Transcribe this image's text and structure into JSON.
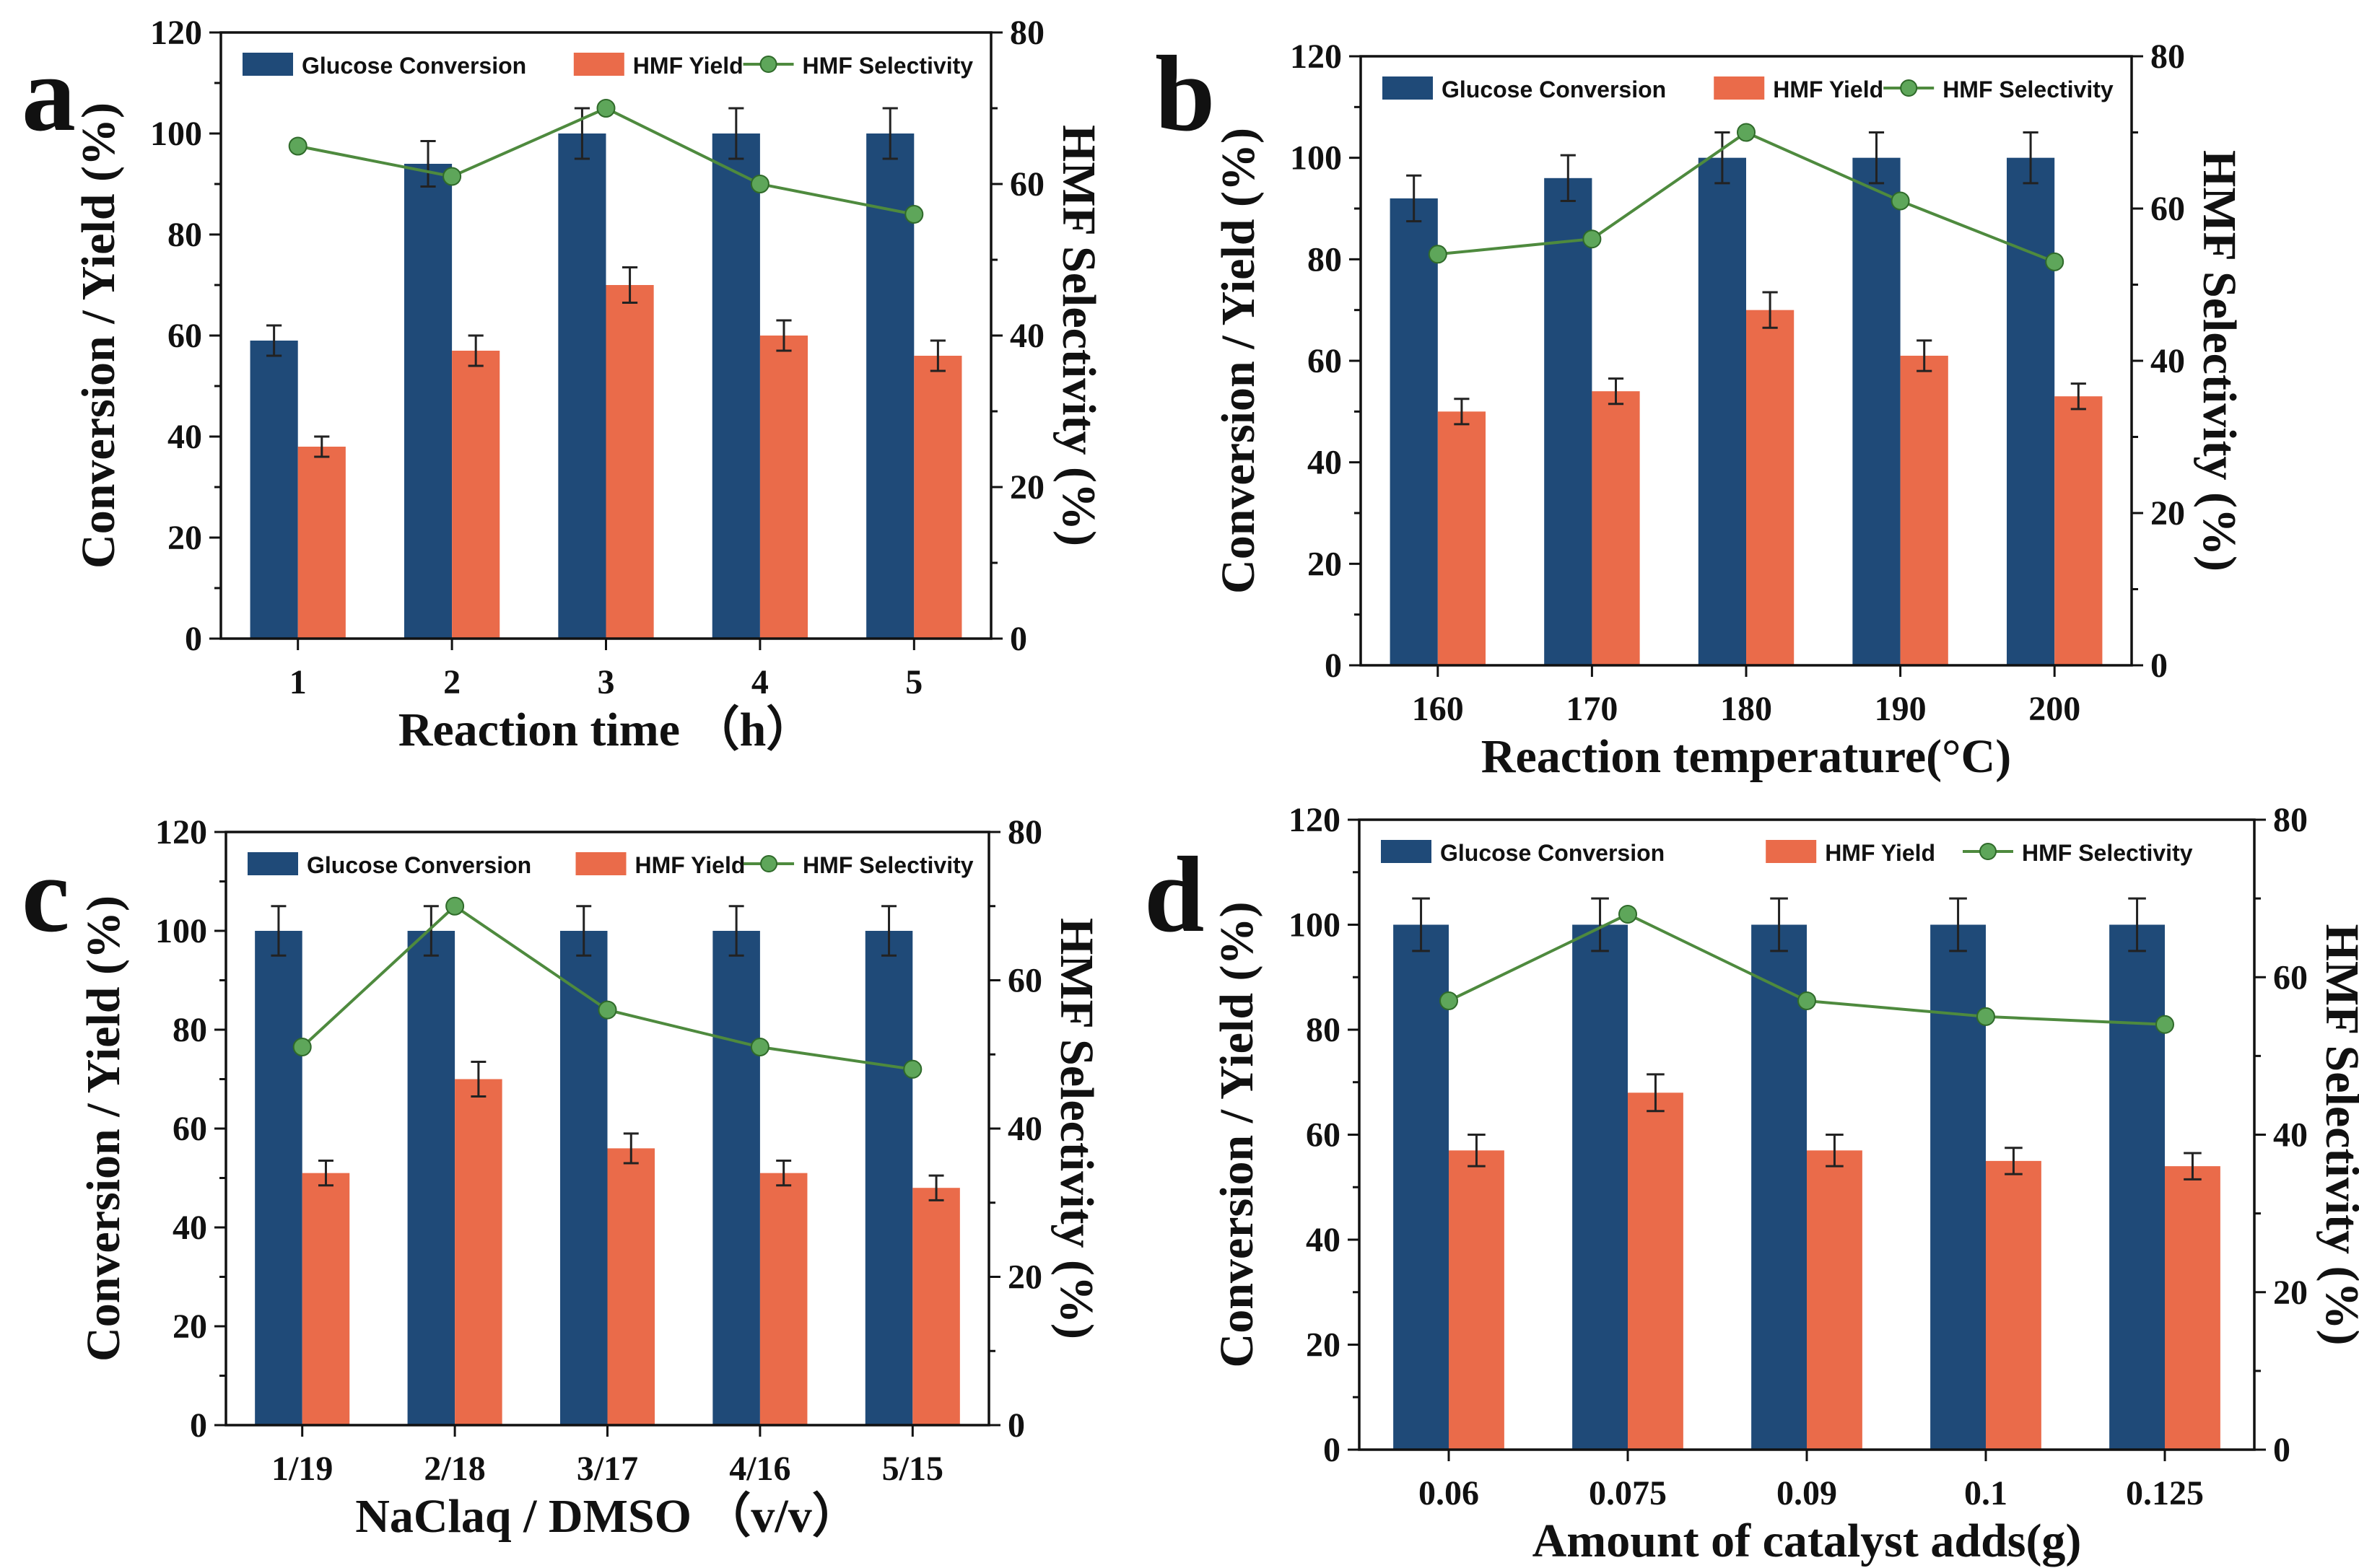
{
  "colors": {
    "conversion": "#1f4a78",
    "yield": "#ea6b4a",
    "selectivity": "#4e8a3e",
    "selectivity_marker": "#5ea65a",
    "axis": "#111111"
  },
  "chart_data": [
    {
      "type": "bar",
      "panel": "a",
      "categories": [
        "1",
        "2",
        "3",
        "4",
        "5"
      ],
      "series": [
        {
          "name": "Glucose Conversion",
          "values": [
            59,
            94,
            100,
            100,
            100
          ],
          "errors": [
            3,
            4.5,
            5,
            5,
            5
          ]
        },
        {
          "name": "HMF Yield",
          "values": [
            38,
            57,
            70,
            60,
            56
          ],
          "errors": [
            2,
            3,
            3.5,
            3,
            3
          ]
        },
        {
          "name": "HMF Selectivity",
          "type": "line",
          "axis": "right",
          "values": [
            65,
            61,
            70,
            60,
            56
          ]
        }
      ],
      "xlabel": "Reaction time （h）",
      "ylabel": "Conversion / Yield (%)",
      "ylabel_right": "HMF Selectivity (%)",
      "ylim": [
        0,
        120
      ],
      "ylim_right": [
        0,
        80
      ],
      "yticks": [
        "0",
        "20",
        "40",
        "60",
        "80",
        "100",
        "120"
      ],
      "yticks_right": [
        "0",
        "20",
        "40",
        "60",
        "80"
      ],
      "legend": "top"
    },
    {
      "type": "bar",
      "panel": "b",
      "categories": [
        "160",
        "170",
        "180",
        "190",
        "200"
      ],
      "series": [
        {
          "name": "Glucose Conversion",
          "values": [
            92,
            96,
            100,
            100,
            100
          ],
          "errors": [
            4.5,
            4.5,
            5,
            5,
            5
          ]
        },
        {
          "name": "HMF Yield",
          "values": [
            50,
            54,
            70,
            61,
            53
          ],
          "errors": [
            2.5,
            2.5,
            3.5,
            3,
            2.5
          ]
        },
        {
          "name": "HMF Selectivity",
          "type": "line",
          "axis": "right",
          "values": [
            54,
            56,
            70,
            61,
            53
          ]
        }
      ],
      "xlabel": "Reaction temperature(°C)",
      "ylabel": "Conversion / Yield (%)",
      "ylabel_right": "HMF Selectivity (%)",
      "ylim": [
        0,
        120
      ],
      "ylim_right": [
        0,
        80
      ],
      "yticks": [
        "0",
        "20",
        "40",
        "60",
        "80",
        "100",
        "120"
      ],
      "yticks_right": [
        "0",
        "20",
        "40",
        "60",
        "80"
      ],
      "legend": "top"
    },
    {
      "type": "bar",
      "panel": "c",
      "categories": [
        "1/19",
        "2/18",
        "3/17",
        "4/16",
        "5/15"
      ],
      "series": [
        {
          "name": "Glucose Conversion",
          "values": [
            100,
            100,
            100,
            100,
            100
          ],
          "errors": [
            5,
            5,
            5,
            5,
            5
          ]
        },
        {
          "name": "HMF Yield",
          "values": [
            51,
            70,
            56,
            51,
            48
          ],
          "errors": [
            2.5,
            3.5,
            3,
            2.5,
            2.5
          ]
        },
        {
          "name": "HMF Selectivity",
          "type": "line",
          "axis": "right",
          "values": [
            51,
            70,
            56,
            51,
            48
          ]
        }
      ],
      "xlabel": "NaClaq / DMSO （v/v）",
      "ylabel": "Conversion / Yield (%)",
      "ylabel_right": "HMF Selectivity (%)",
      "ylim": [
        0,
        120
      ],
      "ylim_right": [
        0,
        80
      ],
      "yticks": [
        "0",
        "20",
        "40",
        "60",
        "80",
        "100",
        "120"
      ],
      "yticks_right": [
        "0",
        "20",
        "40",
        "60",
        "80"
      ],
      "legend": "top"
    },
    {
      "type": "bar",
      "panel": "d",
      "categories": [
        "0.06",
        "0.075",
        "0.09",
        "0.1",
        "0.125"
      ],
      "series": [
        {
          "name": "Glucose Conversion",
          "values": [
            100,
            100,
            100,
            100,
            100
          ],
          "errors": [
            5,
            5,
            5,
            5,
            5
          ]
        },
        {
          "name": "HMF Yield",
          "values": [
            57,
            68,
            57,
            55,
            54
          ],
          "errors": [
            3,
            3.5,
            3,
            2.5,
            2.5
          ]
        },
        {
          "name": "HMF Selectivity",
          "type": "line",
          "axis": "right",
          "values": [
            57,
            68,
            57,
            55,
            54
          ]
        }
      ],
      "xlabel": "Amount of catalyst adds(g)",
      "ylabel": "Conversion / Yield (%)",
      "ylabel_right": "HMF Selectivity (%)",
      "ylim": [
        0,
        120
      ],
      "ylim_right": [
        0,
        80
      ],
      "yticks": [
        "0",
        "20",
        "40",
        "60",
        "80",
        "100",
        "120"
      ],
      "yticks_right": [
        "0",
        "20",
        "40",
        "60",
        "80"
      ],
      "legend": "top"
    }
  ]
}
